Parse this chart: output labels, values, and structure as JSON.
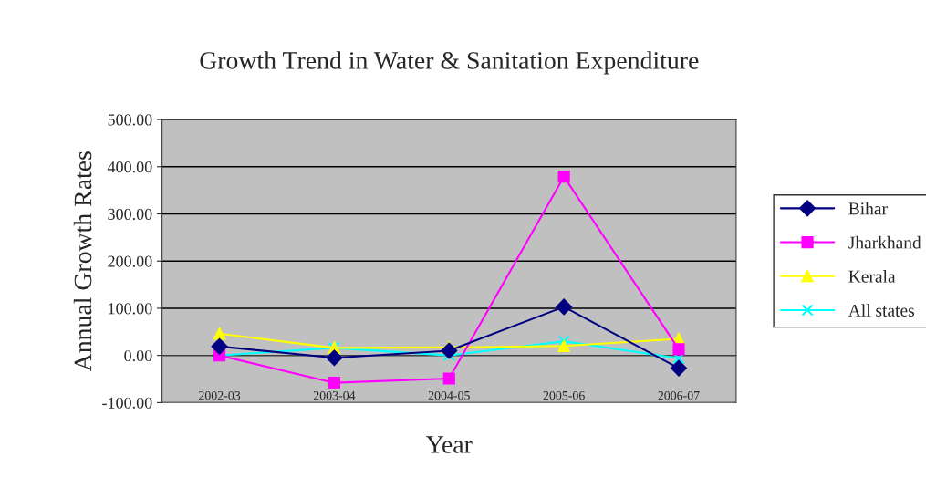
{
  "chart_data": {
    "type": "line",
    "title": "Growth Trend in Water & Sanitation Expenditure",
    "xlabel": "Year",
    "ylabel": "Annual Growth Rates",
    "categories": [
      "2002-03",
      "2003-04",
      "2004-05",
      "2005-06",
      "2006-07"
    ],
    "series": [
      {
        "name": "Bihar",
        "color": "#000080",
        "marker": "diamond",
        "values": [
          19,
          -5,
          10,
          103,
          -27
        ]
      },
      {
        "name": "Jharkhand",
        "color": "#ff00ff",
        "marker": "square",
        "values": [
          0,
          -58,
          -49,
          379,
          13
        ]
      },
      {
        "name": "Kerala",
        "color": "#ffff00",
        "marker": "triangle",
        "values": [
          46,
          16,
          17,
          20,
          35
        ]
      },
      {
        "name": "All states",
        "color": "#00ffff",
        "marker": "cross",
        "values": [
          0,
          16,
          0,
          30,
          -6
        ]
      }
    ],
    "ylim": [
      -100,
      500
    ],
    "yticks": [
      {
        "value": -100,
        "label": "-100.00"
      },
      {
        "value": 0,
        "label": "0.00"
      },
      {
        "value": 100,
        "label": "100.00"
      },
      {
        "value": 200,
        "label": "200.00"
      },
      {
        "value": 300,
        "label": "300.00"
      },
      {
        "value": 400,
        "label": "400.00"
      },
      {
        "value": 500,
        "label": "500.00"
      }
    ],
    "grid": "y",
    "legend": "right",
    "line_style": "solid"
  }
}
